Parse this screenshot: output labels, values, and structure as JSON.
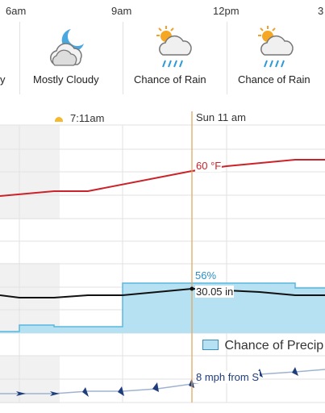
{
  "hours": [
    "6am",
    "9am",
    "12pm",
    "3"
  ],
  "forecasts": [
    {
      "label": "y",
      "icon": "cloudy-icon"
    },
    {
      "label": "Mostly Cloudy",
      "icon": "moon-cloud-icon"
    },
    {
      "label": "Chance of Rain",
      "icon": "sun-cloud-rain-icon"
    },
    {
      "label": "Chance of Rain",
      "icon": "sun-cloud-rain-icon"
    }
  ],
  "sunrise": {
    "time": "7:11am",
    "icon": "sun-icon"
  },
  "cursor": {
    "time_label": "Sun 11 am",
    "temperature": "60 °F",
    "precip_chance": "56%",
    "pressure": "30.05 in",
    "wind": "8 mph from S"
  },
  "legend": {
    "precip": "Chance of Precip"
  },
  "colors": {
    "temperature": "#cc2229",
    "precip_fill": "#b5e1f2",
    "precip_line": "#5bb8dc",
    "cursor": "#e0a860",
    "wind": "#1e3d7c"
  }
}
